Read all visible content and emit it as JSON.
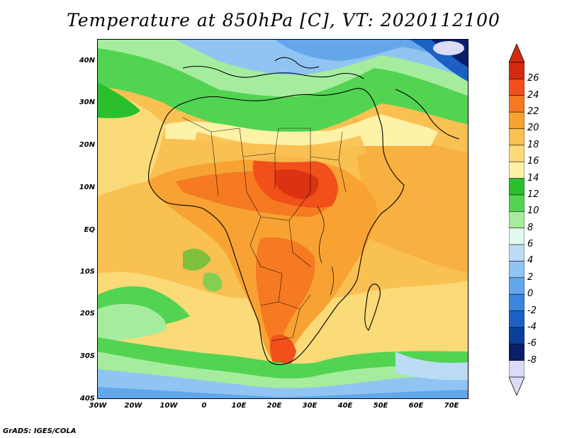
{
  "title": "Temperature at 850hPa [C], VT: 2020112100",
  "footer": "GrADS: IGES/COLA",
  "lat_labels": [
    "40N",
    "30N",
    "20N",
    "10N",
    "EQ",
    "10S",
    "20S",
    "30S",
    "40S"
  ],
  "lon_labels": [
    "30W",
    "20W",
    "10W",
    "0",
    "10E",
    "20E",
    "30E",
    "40E",
    "50E",
    "60E",
    "70E"
  ],
  "colorbar": {
    "labels": [
      "26",
      "24",
      "22",
      "20",
      "18",
      "16",
      "14",
      "12",
      "10",
      "8",
      "6",
      "4",
      "2",
      "0",
      "-2",
      "-4",
      "-6",
      "-8"
    ],
    "colors": [
      "#d42a10",
      "#f2501a",
      "#f57a22",
      "#f7a232",
      "#f9c052",
      "#fbda78",
      "#fdf2a6",
      "#2bbf2e",
      "#52d452",
      "#a6ec9e",
      "#e2f8ee",
      "#bcdcf6",
      "#90c4f2",
      "#64a6ea",
      "#3a86de",
      "#1c60c4",
      "#0c3e9c",
      "#08206a",
      "#dcdcf6"
    ],
    "over_color": "#d42a10",
    "under_color": "#dcdcf6"
  },
  "colors": {
    "ocean_warm": "#f9c052",
    "land_hot": "#f2501a"
  }
}
